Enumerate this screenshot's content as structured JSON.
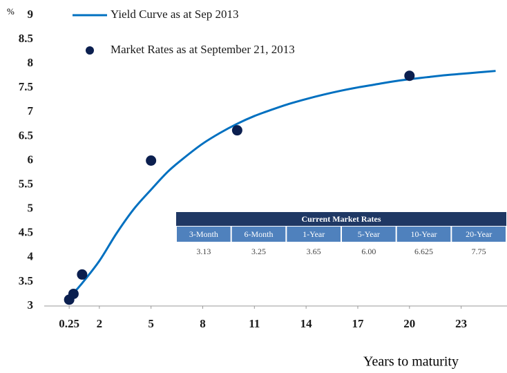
{
  "chart_data": {
    "type": "line",
    "y_label": "%",
    "x_label": "Years to maturity",
    "xlim": [
      -1.2,
      25.5
    ],
    "ylim": [
      3,
      9
    ],
    "xticks": [
      0.25,
      2,
      5,
      8,
      11,
      14,
      17,
      20,
      23
    ],
    "yticks": [
      3,
      3.5,
      4,
      4.5,
      5,
      5.5,
      6,
      6.5,
      7,
      7.5,
      8,
      8.5,
      9
    ],
    "series": [
      {
        "name": "Yield Curve as at Sep 2013",
        "type": "line",
        "color": "#0070c0",
        "x": [
          0.25,
          0.5,
          1,
          2,
          3,
          4,
          5,
          6,
          7,
          8,
          9,
          10,
          11,
          12,
          13,
          14,
          15,
          16,
          17,
          18,
          19,
          20,
          21,
          22,
          23,
          24,
          25
        ],
        "values": [
          3.2,
          3.27,
          3.47,
          3.93,
          4.5,
          5.0,
          5.4,
          5.78,
          6.08,
          6.35,
          6.57,
          6.76,
          6.92,
          7.05,
          7.17,
          7.27,
          7.36,
          7.44,
          7.51,
          7.57,
          7.63,
          7.68,
          7.72,
          7.76,
          7.79,
          7.82,
          7.85
        ]
      },
      {
        "name": "Market Rates as at September 21, 2013",
        "type": "scatter",
        "color": "#0b1f4f",
        "x": [
          0.25,
          0.5,
          1,
          5,
          10,
          20
        ],
        "values": [
          3.13,
          3.25,
          3.65,
          6.0,
          6.625,
          7.75
        ]
      }
    ]
  },
  "table": {
    "title": "Current Market Rates",
    "header": [
      "3-Month",
      "6-Month",
      "1-Year",
      "5-Year",
      "10-Year",
      "20-Year"
    ],
    "rows": [
      [
        "3.13",
        "3.25",
        "3.65",
        "6.00",
        "6.625",
        "7.75"
      ]
    ]
  }
}
